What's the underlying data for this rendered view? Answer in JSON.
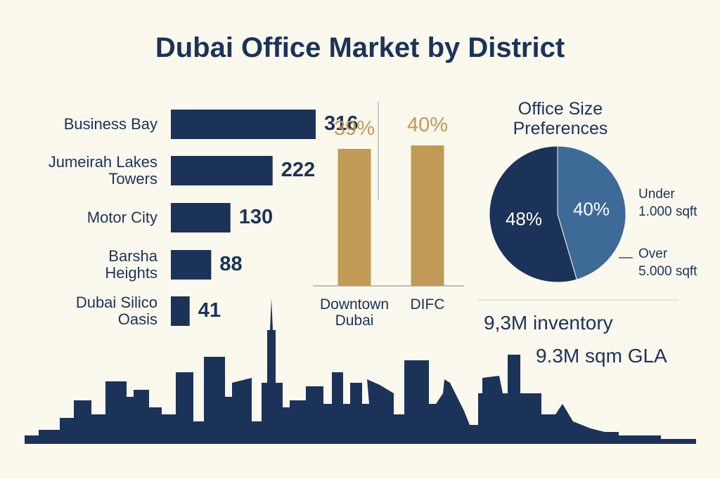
{
  "title": "Dubai Office Market by District",
  "annotations": [
    "9,3M inventory",
    "9.3M sqm GLA"
  ],
  "chart_data": [
    {
      "type": "hbar",
      "categories": [
        "Business Bay",
        "Jumeirah Lakes\nTowers",
        "Motor City",
        "Barsha\nHeights",
        "Dubai Silico\nOasis"
      ],
      "values": [
        316,
        222,
        130,
        88,
        41
      ],
      "color": "#1b3358"
    },
    {
      "type": "bar",
      "categories": [
        "Downtown\nDubai",
        "DIFC"
      ],
      "values": [
        39,
        40
      ],
      "value_labels": [
        "39%",
        "40%"
      ],
      "color": "#c19a55"
    },
    {
      "type": "pie",
      "title": "Office Size\nPreferences",
      "categories": [
        "Under\n1.000 sqft",
        "Over\n5.000 sqft"
      ],
      "values": [
        40,
        48
      ],
      "value_labels": [
        "40%",
        "48%"
      ],
      "colors": [
        "#3d6a96",
        "#1b3358"
      ]
    }
  ]
}
